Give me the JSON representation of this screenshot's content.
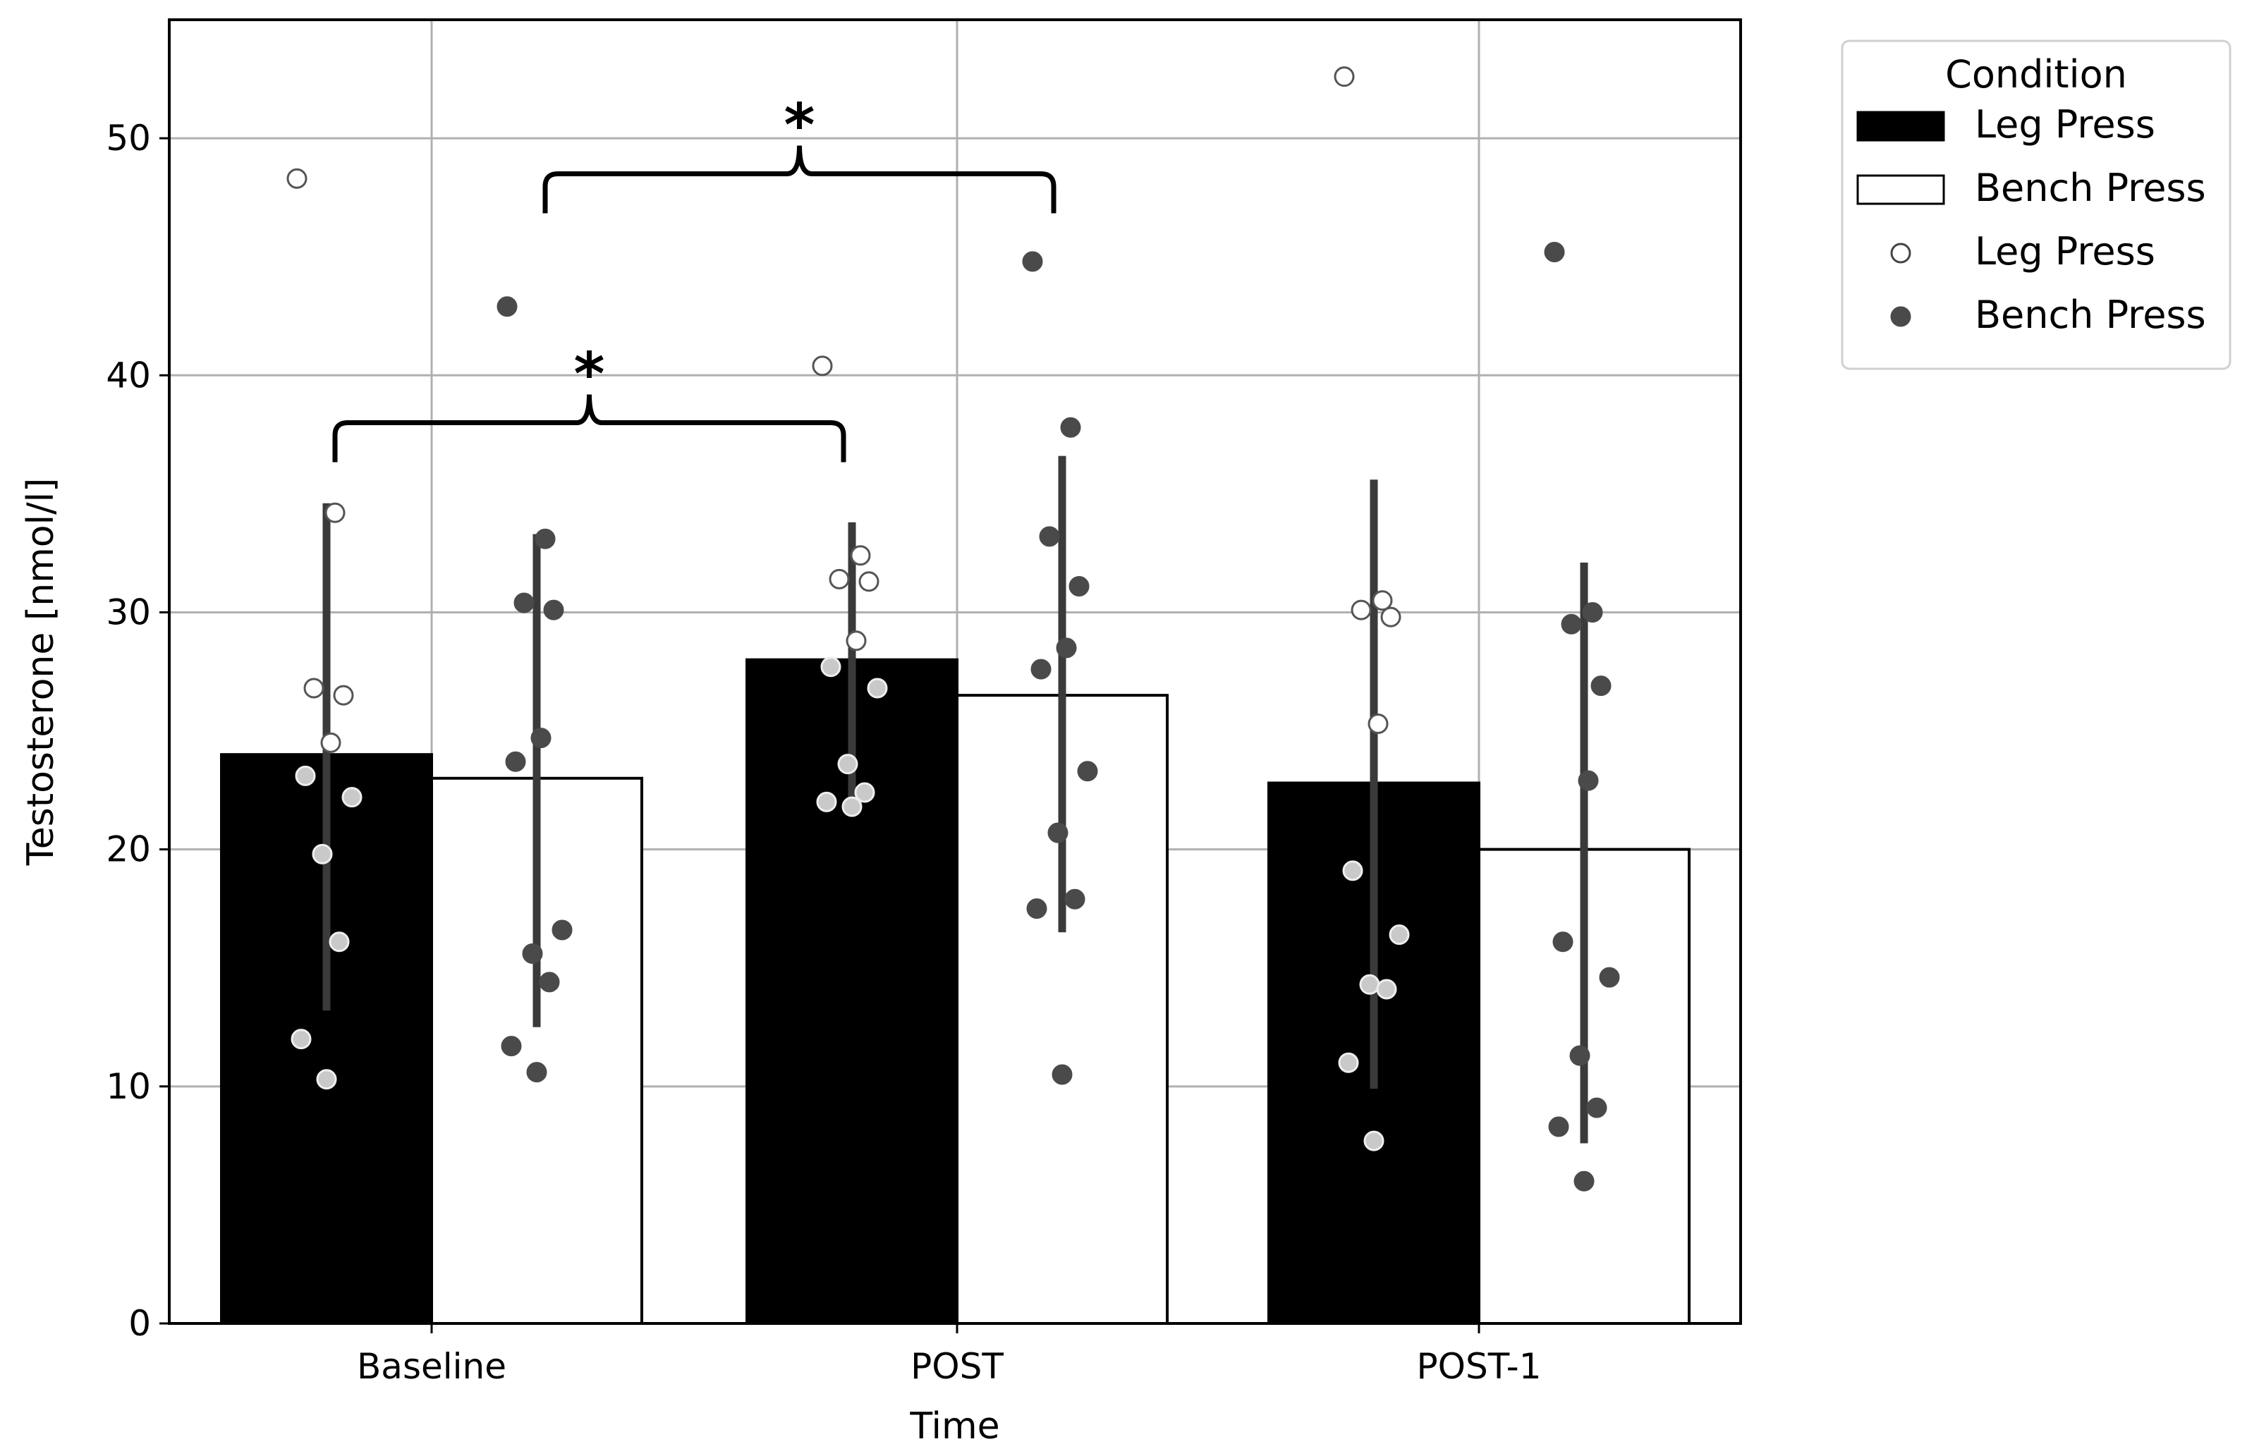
{
  "chart_data": {
    "type": "bar",
    "title": "",
    "xlabel": "Time",
    "ylabel": "Testosterone [nmol/l]",
    "ylim": [
      0,
      55
    ],
    "yticks": [
      0,
      10,
      20,
      30,
      40,
      50
    ],
    "grid": true,
    "categories": [
      "Baseline",
      "POST",
      "POST-1"
    ],
    "series": [
      {
        "name": "Leg Press",
        "bar_color": "#000000",
        "values": [
          24.0,
          28.0,
          22.8
        ],
        "error_low": [
          13.2,
          21.8,
          9.9
        ],
        "error_high": [
          34.6,
          33.8,
          35.6
        ],
        "points": [
          [
            48.3,
            34.2,
            26.8,
            26.5,
            24.5,
            23.1,
            22.2,
            19.8,
            16.1,
            12.0,
            10.3
          ],
          [
            40.4,
            32.4,
            31.4,
            31.3,
            28.8,
            27.7,
            26.8,
            23.6,
            22.4,
            22.0,
            21.8
          ],
          [
            52.6,
            30.5,
            30.1,
            29.8,
            25.3,
            19.1,
            16.4,
            14.3,
            14.1,
            11.0,
            7.7
          ]
        ]
      },
      {
        "name": "Bench Press",
        "bar_color": "#ffffff",
        "values": [
          23.0,
          26.5,
          20.0
        ],
        "error_low": [
          12.5,
          16.5,
          7.6
        ],
        "error_high": [
          33.3,
          36.6,
          32.1
        ],
        "points": [
          [
            42.9,
            33.1,
            30.4,
            30.1,
            24.7,
            23.7,
            16.6,
            15.6,
            14.4,
            11.7,
            10.6
          ],
          [
            44.8,
            37.8,
            33.2,
            31.1,
            28.5,
            27.6,
            23.3,
            20.7,
            17.9,
            17.5,
            10.5
          ],
          [
            45.2,
            30.0,
            29.5,
            26.9,
            22.9,
            16.1,
            14.6,
            11.3,
            9.1,
            8.3,
            6.0
          ]
        ]
      }
    ],
    "significance": [
      {
        "from": "Baseline Leg Press",
        "to": "POST Leg Press",
        "label": "*",
        "y": 38.0
      },
      {
        "from": "Baseline Bench Press",
        "to": "POST Bench Press",
        "label": "*",
        "y": 48.5
      }
    ],
    "legend": {
      "title": "Condition",
      "entries": [
        "Leg Press",
        "Bench Press",
        "Leg Press",
        "Bench Press"
      ],
      "placement": "outside top-right"
    }
  },
  "colors": {
    "leg_bar": "#000000",
    "bench_bar": "#ffffff",
    "error_bar": "#3a3a3a",
    "point_on_bench": "#4a4a4a",
    "point_on_leg": "#c9c9c9",
    "grid": "#b0b0b0"
  }
}
